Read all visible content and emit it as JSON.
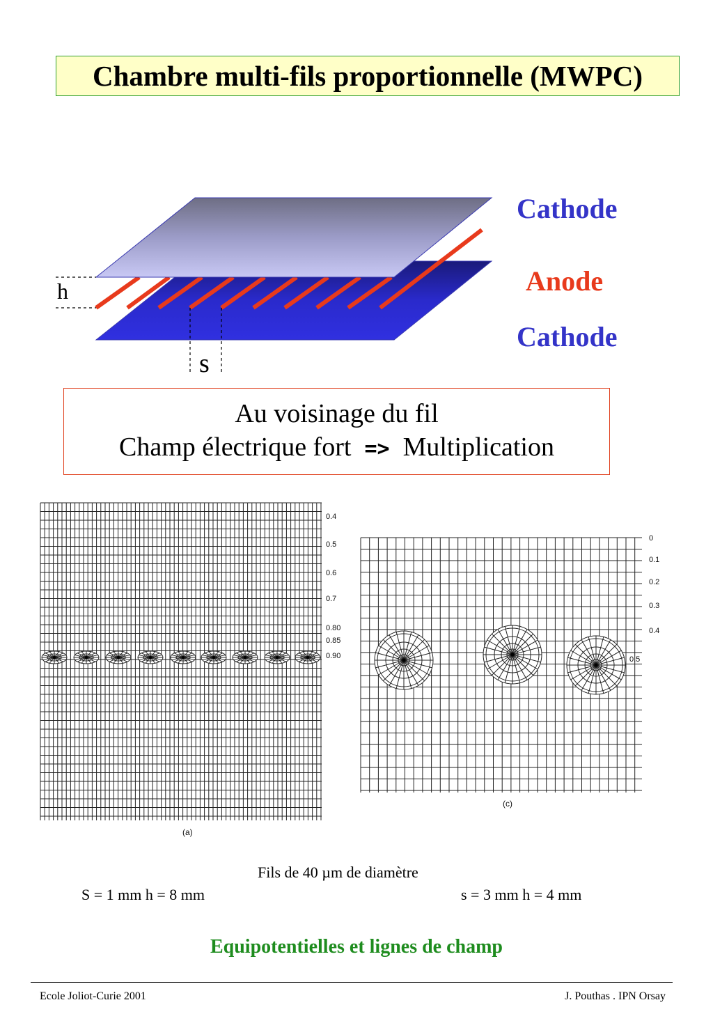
{
  "title": "Chambre multi-fils proportionnelle (MWPC)",
  "diagram": {
    "cathode_top": "Cathode",
    "anode": "Anode",
    "cathode_bottom": "Cathode",
    "h_label": "h",
    "s_label": "s",
    "colors": {
      "cathode": "#3434c8",
      "anode": "#e83a1c",
      "plate_bottom": "#2a2acc"
    }
  },
  "info": {
    "line1": "Au voisinage du fil",
    "line2_a": "Champ électrique fort",
    "line2_arrow": "=>",
    "line2_b": "Multiplication"
  },
  "plot_a": {
    "caption": "(a)",
    "labels": [
      "0.4",
      "0.5",
      "0.6",
      "0.7",
      "0.80",
      "0.85",
      "0.90"
    ]
  },
  "plot_c": {
    "caption": "(c)",
    "labels": [
      "0",
      "0.1",
      "0.2",
      "0.3",
      "0.4",
      "0.5"
    ]
  },
  "caption": {
    "wire": "Fils de 40 µm de diamètre",
    "left_params": "S = 1 mm      h = 8 mm",
    "right_params": "s = 3 mm      h = 4 mm"
  },
  "subtitle": "Equipotentielles et lignes de champ",
  "footer": {
    "left": "Ecole Joliot-Curie 2001",
    "right": "J. Pouthas . IPN Orsay"
  }
}
